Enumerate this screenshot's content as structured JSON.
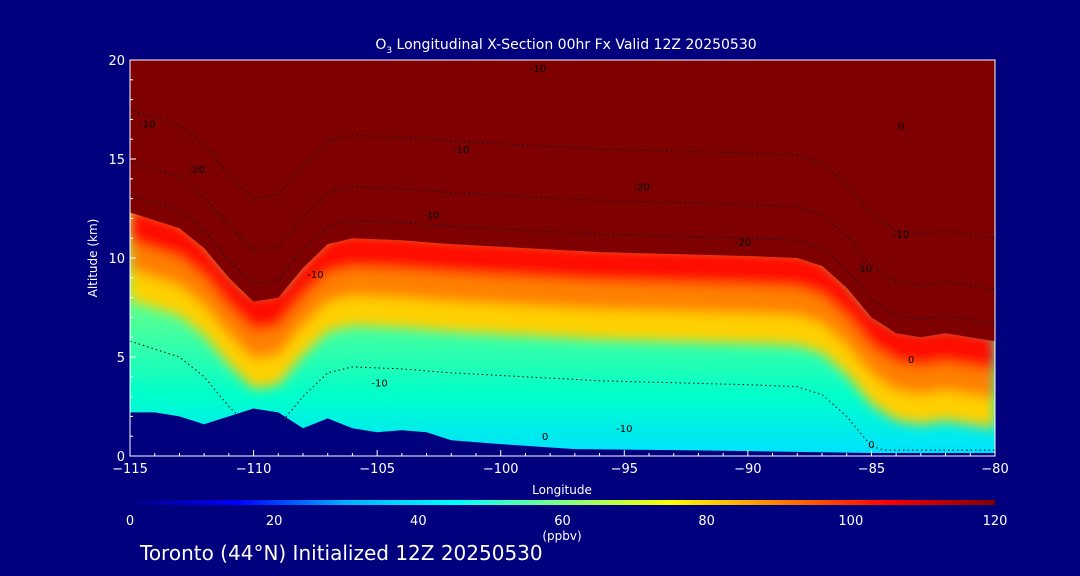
{
  "chart_data": {
    "type": "heatmap",
    "title_prefix": "O",
    "title_sub": "3",
    "title_rest": " Longitudinal X-Section 00hr  Fx Valid 12Z 20250530",
    "xlabel": "Longitude",
    "ylabel": "Altitude (km)",
    "xlim": [
      -115,
      -80
    ],
    "ylim": [
      0,
      20
    ],
    "x_ticks": [
      -115,
      -110,
      -105,
      -100,
      -95,
      -90,
      -85,
      -80
    ],
    "x_tick_labels": [
      "−115",
      "−110",
      "−105",
      "−100",
      "−95",
      "−90",
      "−85",
      "−80"
    ],
    "y_ticks": [
      0,
      5,
      10,
      15,
      20
    ],
    "y_tick_labels": [
      "0",
      "5",
      "10",
      "15",
      "20"
    ],
    "colorbar": {
      "min": 0,
      "max": 120,
      "unit": "(ppbv)",
      "ticks": [
        0,
        20,
        40,
        60,
        80,
        100,
        120
      ],
      "tick_labels": [
        "0",
        "20",
        "40",
        "60",
        "80",
        "100",
        "120"
      ],
      "stops": [
        "#00007f",
        "#0000ff",
        "#00b0ff",
        "#00ffff",
        "#7fff7f",
        "#ffff00",
        "#ff8000",
        "#ff0000",
        "#7f0000"
      ]
    },
    "tropopause_km": [
      [
        -115,
        12.3
      ],
      [
        -113,
        11.5
      ],
      [
        -112,
        10.5
      ],
      [
        -111,
        9.0
      ],
      [
        -110,
        7.8
      ],
      [
        -109,
        8.0
      ],
      [
        -108,
        9.5
      ],
      [
        -107,
        10.7
      ],
      [
        -106,
        11.0
      ],
      [
        -104,
        10.9
      ],
      [
        -102,
        10.7
      ],
      [
        -99,
        10.5
      ],
      [
        -96,
        10.3
      ],
      [
        -93,
        10.2
      ],
      [
        -90,
        10.1
      ],
      [
        -88,
        10.0
      ],
      [
        -87,
        9.6
      ],
      [
        -86,
        8.5
      ],
      [
        -85,
        7.0
      ],
      [
        -84,
        6.2
      ],
      [
        -83,
        6.0
      ],
      [
        -82,
        6.2
      ],
      [
        -81,
        6.0
      ],
      [
        -80,
        5.8
      ]
    ],
    "terrain_km": [
      [
        -115,
        2.2
      ],
      [
        -114,
        2.2
      ],
      [
        -113,
        2.0
      ],
      [
        -112,
        1.6
      ],
      [
        -111,
        2.0
      ],
      [
        -110,
        2.4
      ],
      [
        -109,
        2.2
      ],
      [
        -108,
        1.4
      ],
      [
        -107,
        1.9
      ],
      [
        -106,
        1.4
      ],
      [
        -105,
        1.2
      ],
      [
        -104,
        1.3
      ],
      [
        -103,
        1.2
      ],
      [
        -102,
        0.8
      ],
      [
        -100,
        0.6
      ],
      [
        -97,
        0.35
      ],
      [
        -93,
        0.3
      ],
      [
        -90,
        0.25
      ],
      [
        -85,
        0.15
      ],
      [
        -80,
        0.15
      ]
    ],
    "contour_labels": [
      {
        "text": "-10",
        "lon": -98.5,
        "alt": 19.4
      },
      {
        "text": "-10",
        "lon": -114.3,
        "alt": 16.6
      },
      {
        "text": "-10",
        "lon": -101.6,
        "alt": 15.3
      },
      {
        "text": "-20",
        "lon": -112.3,
        "alt": 14.3
      },
      {
        "text": "-20",
        "lon": -94.3,
        "alt": 13.4
      },
      {
        "text": "-10",
        "lon": -102.8,
        "alt": 12.0
      },
      {
        "text": "-20",
        "lon": -90.2,
        "alt": 10.6
      },
      {
        "text": "-10",
        "lon": -83.8,
        "alt": 11.0
      },
      {
        "text": "-10",
        "lon": -107.5,
        "alt": 9.0
      },
      {
        "text": "-10",
        "lon": -85.3,
        "alt": 9.3
      },
      {
        "text": "0",
        "lon": -83.8,
        "alt": 16.5
      },
      {
        "text": "0",
        "lon": -83.4,
        "alt": 4.7
      },
      {
        "text": "-10",
        "lon": -104.9,
        "alt": 3.5
      },
      {
        "text": "0",
        "lon": -98.2,
        "alt": 0.8
      },
      {
        "text": "-10",
        "lon": -95.0,
        "alt": 1.2
      },
      {
        "text": "0",
        "lon": -85.0,
        "alt": 0.4
      }
    ]
  },
  "footer": "Toronto (44°N) Initialized 12Z 20250530"
}
